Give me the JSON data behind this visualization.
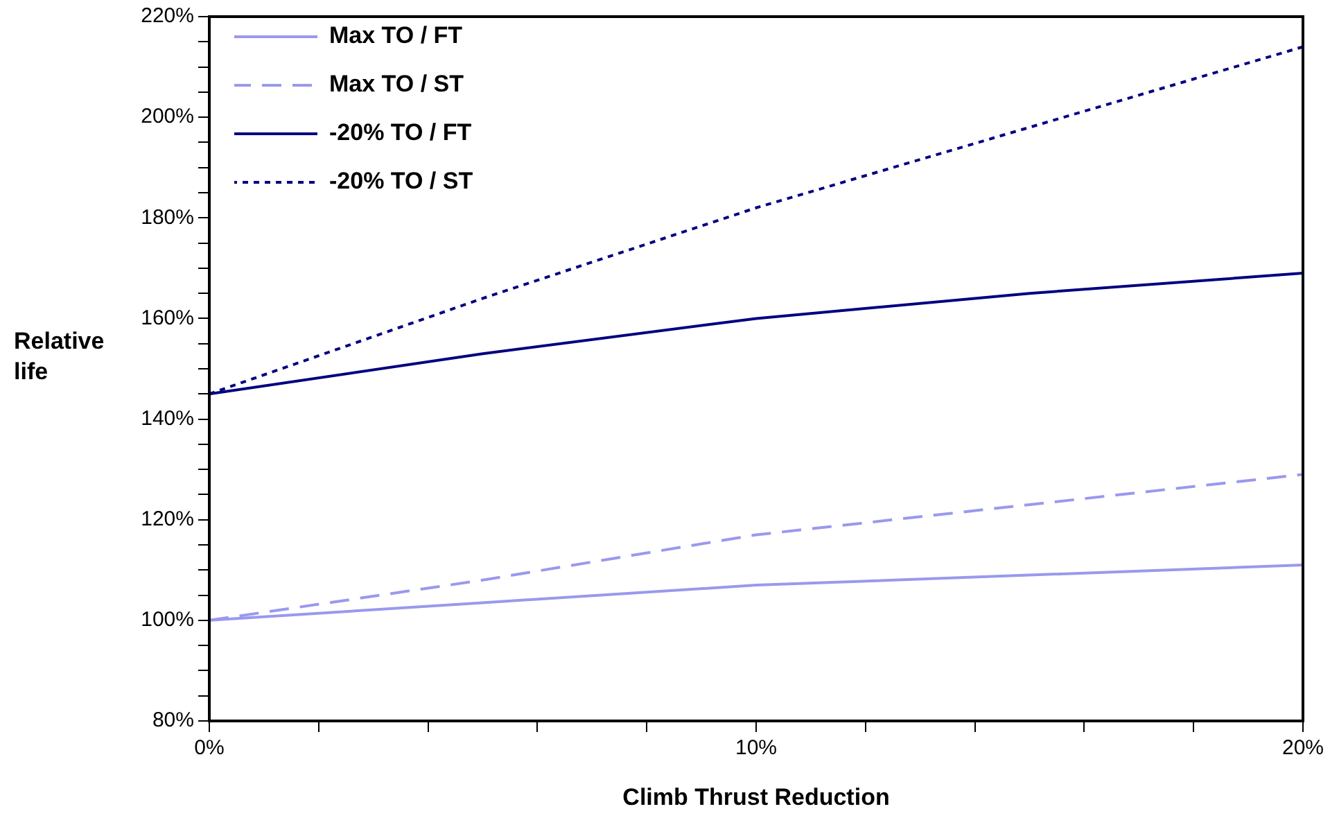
{
  "chart_data": {
    "type": "line",
    "xlabel": "Climb Thrust Reduction",
    "ylabel": "Relative life",
    "x": [
      0,
      5,
      10,
      15,
      20
    ],
    "series": [
      {
        "name": "Max TO / FT",
        "color": "#9999ee",
        "line_style": "solid",
        "values": [
          100,
          103.5,
          107,
          109,
          111
        ]
      },
      {
        "name": "Max TO / ST",
        "color": "#9999ee",
        "line_style": "dashed",
        "values": [
          100,
          108,
          117,
          123,
          129
        ]
      },
      {
        "name": "-20% TO / FT",
        "color": "#000080",
        "line_style": "solid",
        "values": [
          145,
          153,
          160,
          165,
          169
        ]
      },
      {
        "name": "-20% TO / ST",
        "color": "#000080",
        "line_style": "dotted",
        "values": [
          145,
          164,
          182,
          198,
          214
        ]
      }
    ],
    "xlim": [
      0,
      20
    ],
    "xticks": [
      {
        "value": 0,
        "label": "0%"
      },
      {
        "value": 2,
        "label": null
      },
      {
        "value": 4,
        "label": null
      },
      {
        "value": 6,
        "label": null
      },
      {
        "value": 8,
        "label": null
      },
      {
        "value": 10,
        "label": "10%"
      },
      {
        "value": 12,
        "label": null
      },
      {
        "value": 14,
        "label": null
      },
      {
        "value": 16,
        "label": null
      },
      {
        "value": 18,
        "label": null
      },
      {
        "value": 20,
        "label": "20%"
      }
    ],
    "ylim": [
      80,
      220
    ],
    "yticks": [
      {
        "value": 80,
        "label": "80%"
      },
      {
        "value": 85,
        "label": null
      },
      {
        "value": 90,
        "label": null
      },
      {
        "value": 95,
        "label": null
      },
      {
        "value": 100,
        "label": "100%"
      },
      {
        "value": 105,
        "label": null
      },
      {
        "value": 110,
        "label": null
      },
      {
        "value": 115,
        "label": null
      },
      {
        "value": 120,
        "label": "120%"
      },
      {
        "value": 125,
        "label": null
      },
      {
        "value": 130,
        "label": null
      },
      {
        "value": 135,
        "label": null
      },
      {
        "value": 140,
        "label": "140%"
      },
      {
        "value": 145,
        "label": null
      },
      {
        "value": 150,
        "label": null
      },
      {
        "value": 155,
        "label": null
      },
      {
        "value": 160,
        "label": "160%"
      },
      {
        "value": 165,
        "label": null
      },
      {
        "value": 170,
        "label": null
      },
      {
        "value": 175,
        "label": null
      },
      {
        "value": 180,
        "label": "180%"
      },
      {
        "value": 185,
        "label": null
      },
      {
        "value": 190,
        "label": null
      },
      {
        "value": 195,
        "label": null
      },
      {
        "value": 200,
        "label": "200%"
      },
      {
        "value": 205,
        "label": null
      },
      {
        "value": 210,
        "label": null
      },
      {
        "value": 215,
        "label": null
      },
      {
        "value": 220,
        "label": "220%"
      }
    ],
    "grid": false,
    "legend": "top left",
    "marker": "none"
  }
}
